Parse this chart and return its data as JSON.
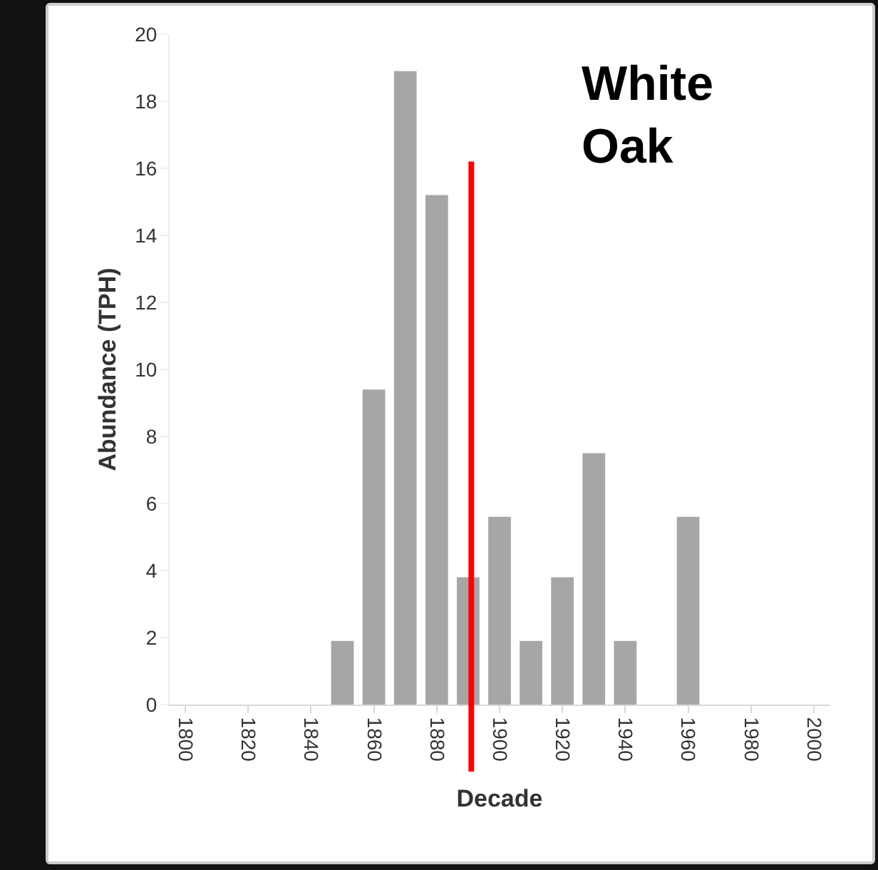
{
  "chart_data": {
    "type": "bar",
    "xlabel": "Decade",
    "ylabel": "Abundance (TPH)",
    "x": [
      1850,
      1860,
      1870,
      1880,
      1890,
      1900,
      1910,
      1920,
      1930,
      1940,
      1960
    ],
    "values": [
      1.9,
      9.4,
      18.9,
      15.2,
      3.8,
      5.6,
      1.9,
      3.8,
      7.5,
      1.9,
      5.6
    ],
    "color": "#a6a6a6",
    "xlim": [
      1795,
      2005
    ],
    "xticks": [
      1800,
      1820,
      1840,
      1860,
      1880,
      1900,
      1920,
      1940,
      1960,
      1980,
      2000
    ],
    "ylim": [
      0,
      20
    ],
    "yticks": [
      0,
      2,
      4,
      6,
      8,
      10,
      12,
      14,
      16,
      18,
      20
    ],
    "grid": false,
    "legend": false,
    "ref_lines": [
      {
        "axis": "x",
        "value": 1891,
        "color": "#ff0000"
      }
    ],
    "annotations": [
      "White\nOak"
    ]
  }
}
